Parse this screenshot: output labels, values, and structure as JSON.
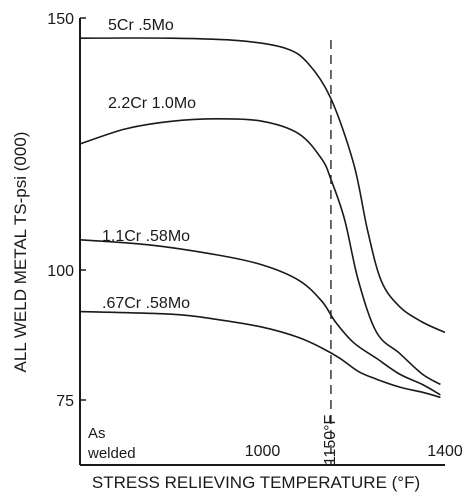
{
  "chart_data": {
    "type": "line",
    "ylabel": "ALL WELD METAL TS-psi (000)",
    "xlabel": "STRESS RELIEVING TEMPERATURE (°F)",
    "xlim": [
      600,
      1400
    ],
    "ylim": [
      75,
      150
    ],
    "y_ticks": [
      {
        "value": 150,
        "label": "150"
      },
      {
        "value": 100,
        "label": "100"
      },
      {
        "value": 75,
        "label": "75"
      }
    ],
    "x_ticks": [
      {
        "value": 1000,
        "label": "1000"
      },
      {
        "value": 1400,
        "label": "1400"
      }
    ],
    "x_start_label": [
      "As",
      "welded"
    ],
    "reference_line": {
      "x": 1150,
      "label": "1150°F",
      "style": "dashed"
    },
    "series": [
      {
        "name": "5Cr  .5Mo",
        "x": [
          600,
          800,
          950,
          1050,
          1100,
          1150,
          1200,
          1230,
          1260,
          1300,
          1350,
          1400
        ],
        "y": [
          146,
          146,
          145.5,
          144,
          141,
          134,
          121,
          108,
          98,
          93,
          90,
          88
        ]
      },
      {
        "name": "2.2Cr  1.0Mo",
        "x": [
          600,
          700,
          800,
          900,
          1000,
          1080,
          1130,
          1150,
          1180,
          1210,
          1250,
          1300,
          1350,
          1390
        ],
        "y": [
          125,
          128,
          129.5,
          130,
          129.5,
          127,
          122,
          118,
          110,
          98,
          88,
          84,
          80,
          78
        ]
      },
      {
        "name": "1.1Cr  .58Mo",
        "x": [
          600,
          750,
          900,
          1000,
          1080,
          1130,
          1160,
          1200,
          1250,
          1300,
          1350,
          1390
        ],
        "y": [
          106,
          105,
          103,
          101,
          98,
          94,
          90,
          86,
          83,
          80,
          78,
          76
        ]
      },
      {
        "name": ".67Cr  .58Mo",
        "x": [
          600,
          800,
          900,
          1000,
          1080,
          1130,
          1170,
          1210,
          1250,
          1300,
          1350,
          1390
        ],
        "y": [
          92,
          91.5,
          90.5,
          89,
          87,
          85,
          83,
          80.5,
          79,
          77.5,
          76.5,
          75.5
        ]
      }
    ]
  }
}
